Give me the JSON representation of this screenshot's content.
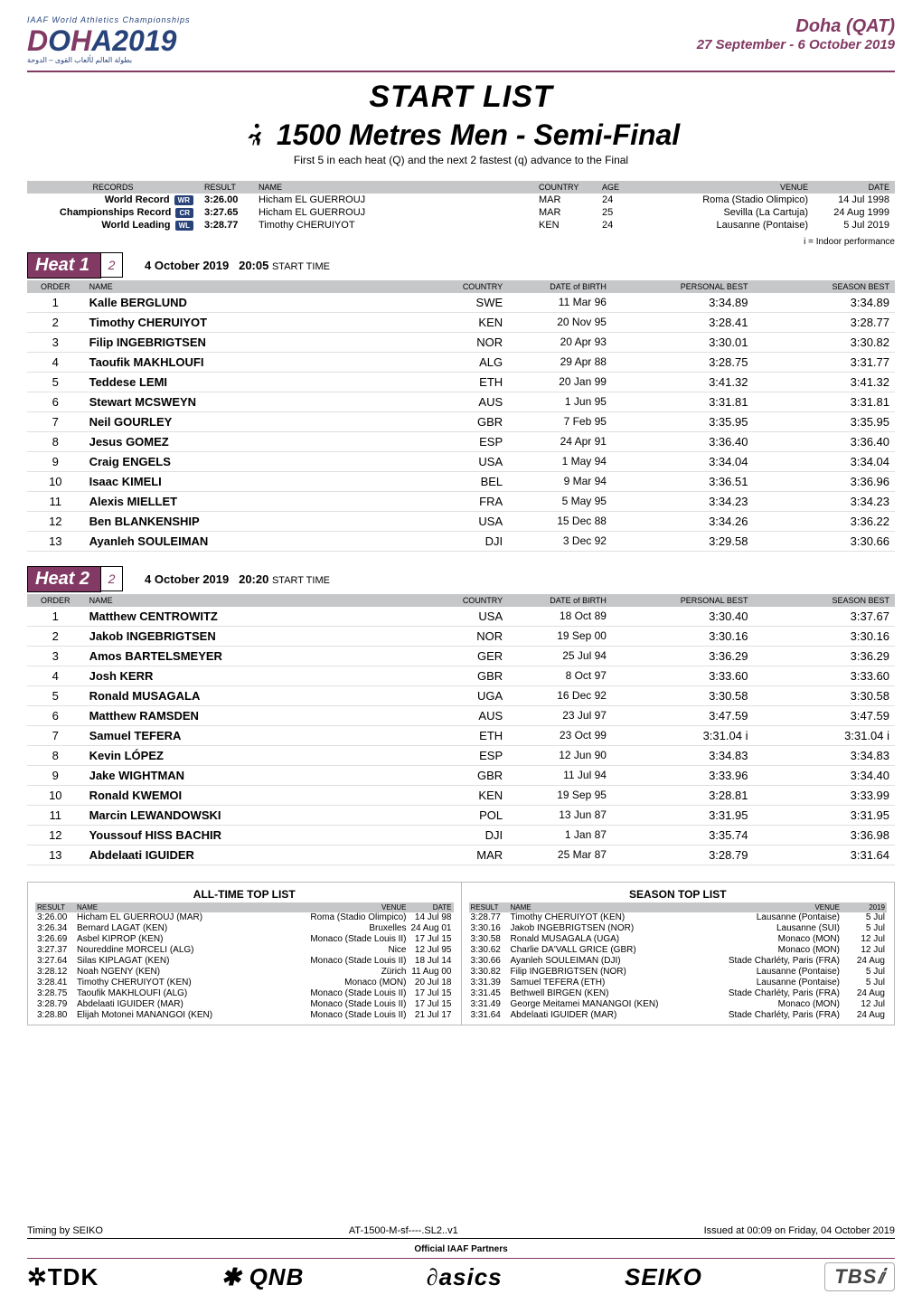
{
  "header": {
    "iaaf_line": "IAAF World Athletics Championships",
    "logo_main": "DOHA2019",
    "logo_arabic": "بطولة العالم لألعاب القوى – الدوحة",
    "venue": "Doha (QAT)",
    "dates": "27 September - 6 October 2019"
  },
  "title": {
    "start_list": "START LIST",
    "event": "1500 Metres Men - Semi-Final",
    "subtitle": "First 5 in each heat (Q) and the next 2 fastest (q) advance to the Final"
  },
  "records_header": {
    "c1": "RECORDS",
    "c2": "RESULT",
    "c3": "NAME",
    "c4": "COUNTRY",
    "c5": "AGE",
    "c6": "VENUE",
    "c7": "DATE"
  },
  "records": [
    {
      "label": "World Record",
      "badge": "WR",
      "result": "3:26.00",
      "name": "Hicham EL GUERROUJ",
      "country": "MAR",
      "age": "24",
      "venue": "Roma (Stadio Olimpico)",
      "date": "14 Jul 1998"
    },
    {
      "label": "Championships Record",
      "badge": "CR",
      "result": "3:27.65",
      "name": "Hicham EL GUERROUJ",
      "country": "MAR",
      "age": "25",
      "venue": "Sevilla (La Cartuja)",
      "date": "24 Aug 1999"
    },
    {
      "label": "World Leading",
      "badge": "WL",
      "result": "3:28.77",
      "name": "Timothy CHERUIYOT",
      "country": "KEN",
      "age": "24",
      "venue": "Lausanne (Pontaise)",
      "date": "5 Jul 2019"
    }
  ],
  "indoor_note": "i = Indoor performance",
  "heat_cols": {
    "order": "ORDER",
    "name": "NAME",
    "country": "COUNTRY",
    "dob": "DATE of BIRTH",
    "pb": "PERSONAL BEST",
    "sb": "SEASON BEST"
  },
  "heat1": {
    "label": "Heat 1",
    "icon": "2",
    "date": "4 October  2019",
    "time": "20:05",
    "time_suffix": "START TIME",
    "rows": [
      {
        "o": "1",
        "n": "Kalle BERGLUND",
        "c": "SWE",
        "d": "11 Mar 96",
        "pb": "3:34.89",
        "sb": "3:34.89"
      },
      {
        "o": "2",
        "n": "Timothy CHERUIYOT",
        "c": "KEN",
        "d": "20 Nov 95",
        "pb": "3:28.41",
        "sb": "3:28.77"
      },
      {
        "o": "3",
        "n": "Filip INGEBRIGTSEN",
        "c": "NOR",
        "d": "20 Apr 93",
        "pb": "3:30.01",
        "sb": "3:30.82"
      },
      {
        "o": "4",
        "n": "Taoufik MAKHLOUFI",
        "c": "ALG",
        "d": "29 Apr 88",
        "pb": "3:28.75",
        "sb": "3:31.77"
      },
      {
        "o": "5",
        "n": "Teddese LEMI",
        "c": "ETH",
        "d": "20 Jan 99",
        "pb": "3:41.32",
        "sb": "3:41.32"
      },
      {
        "o": "6",
        "n": "Stewart MCSWEYN",
        "c": "AUS",
        "d": "1 Jun 95",
        "pb": "3:31.81",
        "sb": "3:31.81"
      },
      {
        "o": "7",
        "n": "Neil GOURLEY",
        "c": "GBR",
        "d": "7 Feb 95",
        "pb": "3:35.95",
        "sb": "3:35.95"
      },
      {
        "o": "8",
        "n": "Jesus GOMEZ",
        "c": "ESP",
        "d": "24 Apr 91",
        "pb": "3:36.40",
        "sb": "3:36.40"
      },
      {
        "o": "9",
        "n": "Craig ENGELS",
        "c": "USA",
        "d": "1 May 94",
        "pb": "3:34.04",
        "sb": "3:34.04"
      },
      {
        "o": "10",
        "n": "Isaac KIMELI",
        "c": "BEL",
        "d": "9 Mar 94",
        "pb": "3:36.51",
        "sb": "3:36.96"
      },
      {
        "o": "11",
        "n": "Alexis MIELLET",
        "c": "FRA",
        "d": "5 May 95",
        "pb": "3:34.23",
        "sb": "3:34.23"
      },
      {
        "o": "12",
        "n": "Ben BLANKENSHIP",
        "c": "USA",
        "d": "15 Dec 88",
        "pb": "3:34.26",
        "sb": "3:36.22"
      },
      {
        "o": "13",
        "n": "Ayanleh SOULEIMAN",
        "c": "DJI",
        "d": "3 Dec 92",
        "pb": "3:29.58",
        "sb": "3:30.66"
      }
    ]
  },
  "heat2": {
    "label": "Heat 2",
    "icon": "2",
    "date": "4 October  2019",
    "time": "20:20",
    "time_suffix": "START TIME",
    "rows": [
      {
        "o": "1",
        "n": "Matthew CENTROWITZ",
        "c": "USA",
        "d": "18 Oct 89",
        "pb": "3:30.40",
        "sb": "3:37.67"
      },
      {
        "o": "2",
        "n": "Jakob INGEBRIGTSEN",
        "c": "NOR",
        "d": "19 Sep 00",
        "pb": "3:30.16",
        "sb": "3:30.16"
      },
      {
        "o": "3",
        "n": "Amos BARTELSMEYER",
        "c": "GER",
        "d": "25 Jul 94",
        "pb": "3:36.29",
        "sb": "3:36.29"
      },
      {
        "o": "4",
        "n": "Josh KERR",
        "c": "GBR",
        "d": "8 Oct 97",
        "pb": "3:33.60",
        "sb": "3:33.60"
      },
      {
        "o": "5",
        "n": "Ronald MUSAGALA",
        "c": "UGA",
        "d": "16 Dec 92",
        "pb": "3:30.58",
        "sb": "3:30.58"
      },
      {
        "o": "6",
        "n": "Matthew RAMSDEN",
        "c": "AUS",
        "d": "23 Jul 97",
        "pb": "3:47.59",
        "sb": "3:47.59"
      },
      {
        "o": "7",
        "n": "Samuel TEFERA",
        "c": "ETH",
        "d": "23 Oct 99",
        "pb": "3:31.04 i",
        "sb": "3:31.04 i"
      },
      {
        "o": "8",
        "n": "Kevin LÓPEZ",
        "c": "ESP",
        "d": "12 Jun 90",
        "pb": "3:34.83",
        "sb": "3:34.83"
      },
      {
        "o": "9",
        "n": "Jake WIGHTMAN",
        "c": "GBR",
        "d": "11 Jul 94",
        "pb": "3:33.96",
        "sb": "3:34.40"
      },
      {
        "o": "10",
        "n": "Ronald KWEMOI",
        "c": "KEN",
        "d": "19 Sep 95",
        "pb": "3:28.81",
        "sb": "3:33.99"
      },
      {
        "o": "11",
        "n": "Marcin LEWANDOWSKI",
        "c": "POL",
        "d": "13 Jun 87",
        "pb": "3:31.95",
        "sb": "3:31.95"
      },
      {
        "o": "12",
        "n": "Youssouf HISS BACHIR",
        "c": "DJI",
        "d": "1 Jan 87",
        "pb": "3:35.74",
        "sb": "3:36.98"
      },
      {
        "o": "13",
        "n": "Abdelaati IGUIDER",
        "c": "MAR",
        "d": "25 Mar 87",
        "pb": "3:28.79",
        "sb": "3:31.64"
      }
    ]
  },
  "alltime": {
    "title": "ALL-TIME TOP LIST",
    "head": {
      "r": "RESULT",
      "n": "NAME",
      "v": "VENUE",
      "d": "DATE"
    },
    "rows": [
      {
        "r": "3:26.00",
        "n": "Hicham EL GUERROUJ (MAR)",
        "v": "Roma (Stadio Olimpico)",
        "d": "14 Jul 98"
      },
      {
        "r": "3:26.34",
        "n": "Bernard LAGAT (KEN)",
        "v": "Bruxelles",
        "d": "24 Aug 01"
      },
      {
        "r": "3:26.69",
        "n": "Asbel KIPROP (KEN)",
        "v": "Monaco (Stade Louis II)",
        "d": "17 Jul 15"
      },
      {
        "r": "3:27.37",
        "n": "Noureddine MORCELI (ALG)",
        "v": "Nice",
        "d": "12 Jul 95"
      },
      {
        "r": "3:27.64",
        "n": "Silas KIPLAGAT (KEN)",
        "v": "Monaco (Stade Louis II)",
        "d": "18 Jul 14"
      },
      {
        "r": "3:28.12",
        "n": "Noah NGENY (KEN)",
        "v": "Zürich",
        "d": "11 Aug 00"
      },
      {
        "r": "3:28.41",
        "n": "Timothy CHERUIYOT (KEN)",
        "v": "Monaco (MON)",
        "d": "20 Jul 18"
      },
      {
        "r": "3:28.75",
        "n": "Taoufik MAKHLOUFI (ALG)",
        "v": "Monaco (Stade Louis II)",
        "d": "17 Jul 15"
      },
      {
        "r": "3:28.79",
        "n": "Abdelaati IGUIDER (MAR)",
        "v": "Monaco (Stade Louis II)",
        "d": "17 Jul 15"
      },
      {
        "r": "3:28.80",
        "n": "Elijah Motonei MANANGOI (KEN)",
        "v": "Monaco (Stade Louis II)",
        "d": "21 Jul 17"
      }
    ]
  },
  "season": {
    "title": "SEASON TOP LIST",
    "head": {
      "r": "RESULT",
      "n": "NAME",
      "v": "VENUE",
      "d": "2019"
    },
    "rows": [
      {
        "r": "3:28.77",
        "n": "Timothy CHERUIYOT (KEN)",
        "v": "Lausanne (Pontaise)",
        "d": "5 Jul"
      },
      {
        "r": "3:30.16",
        "n": "Jakob INGEBRIGTSEN (NOR)",
        "v": "Lausanne (SUI)",
        "d": "5 Jul"
      },
      {
        "r": "3:30.58",
        "n": "Ronald MUSAGALA (UGA)",
        "v": "Monaco (MON)",
        "d": "12 Jul"
      },
      {
        "r": "3:30.62",
        "n": "Charlie DA'VALL GRICE (GBR)",
        "v": "Monaco (MON)",
        "d": "12 Jul"
      },
      {
        "r": "3:30.66",
        "n": "Ayanleh SOULEIMAN (DJI)",
        "v": "Stade Charléty, Paris (FRA)",
        "d": "24 Aug"
      },
      {
        "r": "3:30.82",
        "n": "Filip INGEBRIGTSEN (NOR)",
        "v": "Lausanne (Pontaise)",
        "d": "5 Jul"
      },
      {
        "r": "3:31.39",
        "n": "Samuel TEFERA (ETH)",
        "v": "Lausanne (Pontaise)",
        "d": "5 Jul"
      },
      {
        "r": "3:31.45",
        "n": "Bethwell BIRGEN (KEN)",
        "v": "Stade Charléty, Paris (FRA)",
        "d": "24 Aug"
      },
      {
        "r": "3:31.49",
        "n": "George Meitamei MANANGOI (KEN)",
        "v": "Monaco (MON)",
        "d": "12 Jul"
      },
      {
        "r": "3:31.64",
        "n": "Abdelaati IGUIDER (MAR)",
        "v": "Stade Charléty, Paris (FRA)",
        "d": "24 Aug"
      }
    ]
  },
  "footer": {
    "left": "Timing by SEIKO",
    "mid": "AT-1500-M-sf----.SL2..v1",
    "right": "Issued at 00:09 on Friday, 04 October  2019",
    "partners_label": "Official IAAF Partners",
    "logos": {
      "tdk": "✲TDK",
      "qnb": "✱ QNB",
      "asics": "asics",
      "seiko": "SEIKO",
      "tbs": "TBSⅈ"
    }
  },
  "colors": {
    "magenta": "#823a64",
    "navy": "#27437a",
    "head_grey": "#c6c7c9",
    "row_border": "#e0e0e0"
  }
}
